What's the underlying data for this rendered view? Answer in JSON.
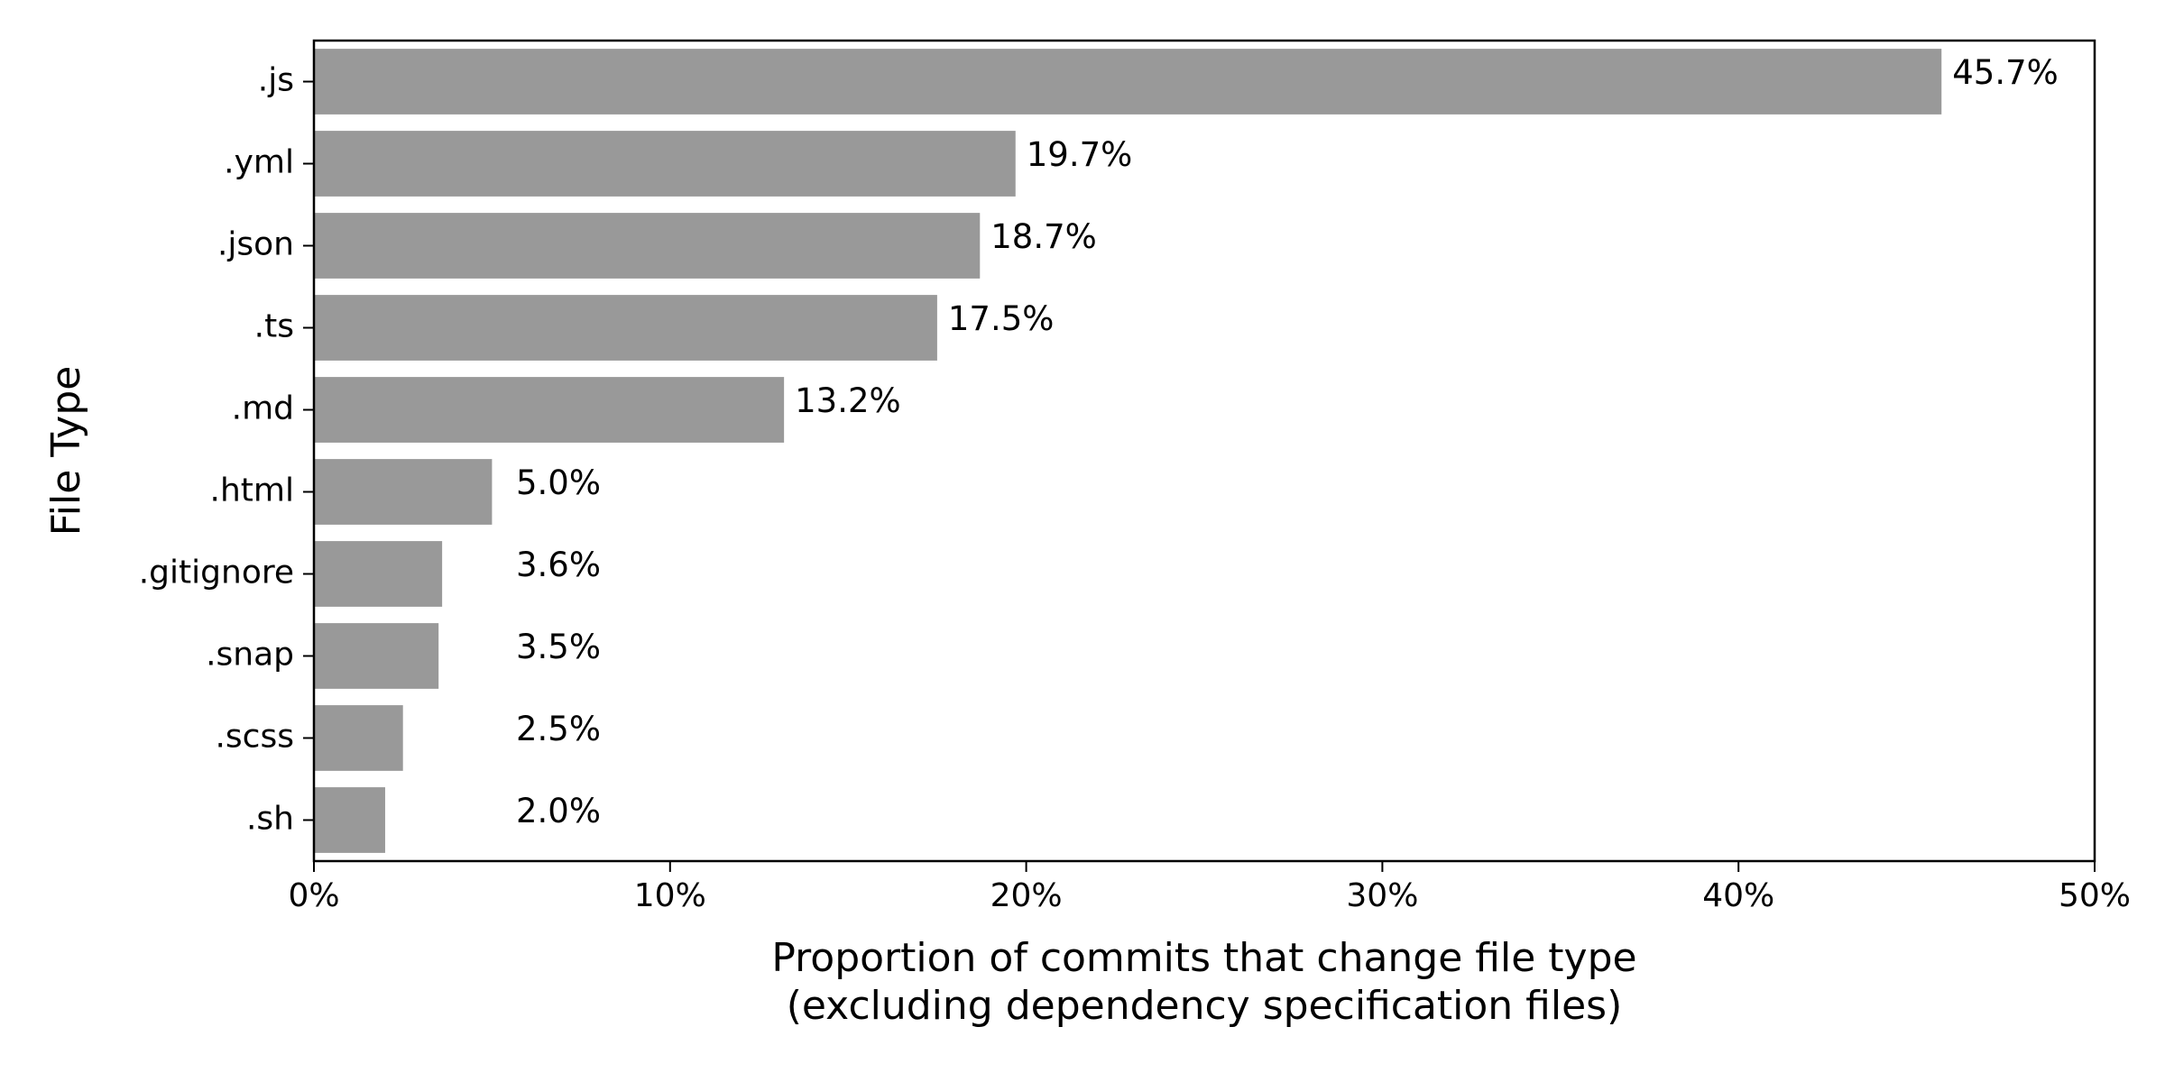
{
  "chart_data": {
    "type": "bar",
    "orientation": "horizontal",
    "categories": [
      ".js",
      ".yml",
      ".json",
      ".ts",
      ".md",
      ".html",
      ".gitignore",
      ".snap",
      ".scss",
      ".sh"
    ],
    "values": [
      45.7,
      19.7,
      18.7,
      17.5,
      13.2,
      5.0,
      3.6,
      3.5,
      2.5,
      2.0
    ],
    "value_labels": [
      "45.7%",
      "19.7%",
      "18.7%",
      "17.5%",
      "13.2%",
      "5.0%",
      "3.6%",
      "3.5%",
      "2.5%",
      "2.0%"
    ],
    "xlabel_lines": [
      "Proportion of commits that change file type",
      "(excluding dependency specification files)"
    ],
    "ylabel": "File Type",
    "xlim": [
      0,
      50
    ],
    "xticks": [
      0,
      10,
      20,
      30,
      40,
      50
    ],
    "xtick_labels": [
      "0%",
      "10%",
      "20%",
      "30%",
      "40%",
      "50%"
    ],
    "bar_color": "#999999",
    "grid": false
  }
}
